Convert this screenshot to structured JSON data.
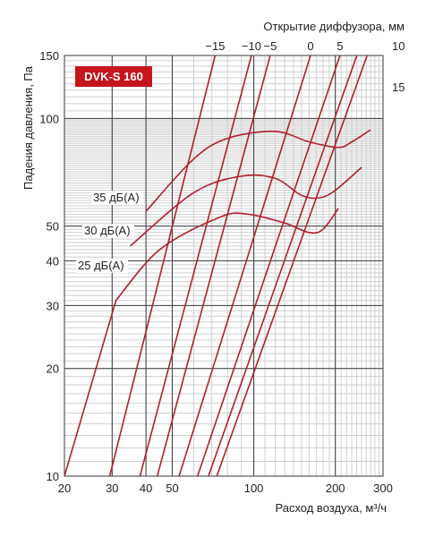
{
  "chart_data": {
    "type": "line",
    "title": "",
    "model_badge": "DVK-S 160",
    "xlabel": "Расход воздуха, м³/ч",
    "ylabel": "Падения давления, Па",
    "top_axis_label": "Открытие диффузора, мм",
    "x_scale": "log",
    "y_scale": "log",
    "xlim": [
      20,
      300
    ],
    "ylim": [
      10,
      150
    ],
    "x_ticks": [
      20,
      30,
      40,
      50,
      100,
      200,
      300
    ],
    "x_tick_labels": [
      "20",
      "30",
      "40",
      "50",
      "100",
      "200",
      "300"
    ],
    "y_ticks": [
      10,
      20,
      30,
      40,
      50,
      100,
      150
    ],
    "y_tick_labels": [
      "10",
      "20",
      "30",
      "40",
      "50",
      "100",
      "150"
    ],
    "grid": true,
    "colors": {
      "curve": "#b0202a",
      "badge": "#c4161c",
      "major_grid": "#3a3a3a",
      "minor_grid": "#cfcfcf"
    },
    "series": [
      {
        "name": "-15",
        "points": [
          [
            29.4,
            10
          ],
          [
            72,
            150
          ]
        ]
      },
      {
        "name": "-10",
        "points": [
          [
            38,
            10
          ],
          [
            98,
            150
          ]
        ]
      },
      {
        "name": "-5",
        "points": [
          [
            44,
            10
          ],
          [
            115,
            150
          ]
        ]
      },
      {
        "name": "0",
        "points": [
          [
            53,
            10
          ],
          [
            162,
            150
          ]
        ]
      },
      {
        "name": "5",
        "points": [
          [
            62,
            10
          ],
          [
            208,
            150
          ]
        ]
      },
      {
        "name": "10",
        "points": [
          [
            68,
            10
          ],
          [
            240,
            150
          ]
        ]
      },
      {
        "name": "15",
        "points": [
          [
            73,
            10
          ],
          [
            262,
            150
          ]
        ]
      },
      {
        "name": "",
        "points": [
          [
            20,
            10
          ],
          [
            31,
            31
          ]
        ]
      }
    ],
    "noise_curves": [
      {
        "name": "35 дБ(А)",
        "points": [
          [
            40,
            55
          ],
          [
            60,
            77
          ],
          [
            80,
            88
          ],
          [
            120,
            92
          ],
          [
            160,
            86
          ],
          [
            205,
            83
          ],
          [
            230,
            86
          ],
          [
            270,
            93
          ]
        ]
      },
      {
        "name": "30 дБ(А)",
        "points": [
          [
            35,
            44
          ],
          [
            60,
            62
          ],
          [
            90,
            69
          ],
          [
            120,
            68
          ],
          [
            150,
            61
          ],
          [
            175,
            60
          ],
          [
            200,
            63
          ],
          [
            250,
            73
          ]
        ]
      },
      {
        "name": "25 дБ(А)",
        "points": [
          [
            31,
            31
          ],
          [
            45,
            43
          ],
          [
            75,
            53
          ],
          [
            95,
            54
          ],
          [
            130,
            51
          ],
          [
            160,
            48
          ],
          [
            180,
            49
          ],
          [
            205,
            56
          ]
        ]
      }
    ],
    "top_labels": [
      {
        "label": "−15",
        "value": 72
      },
      {
        "label": "−10",
        "value": 98
      },
      {
        "label": "−5",
        "value": 115
      },
      {
        "label": "0",
        "value": 162
      },
      {
        "label": "5",
        "value": 208
      },
      {
        "label": "10",
        "value": 240
      },
      {
        "label": "15",
        "value": 262
      }
    ]
  }
}
